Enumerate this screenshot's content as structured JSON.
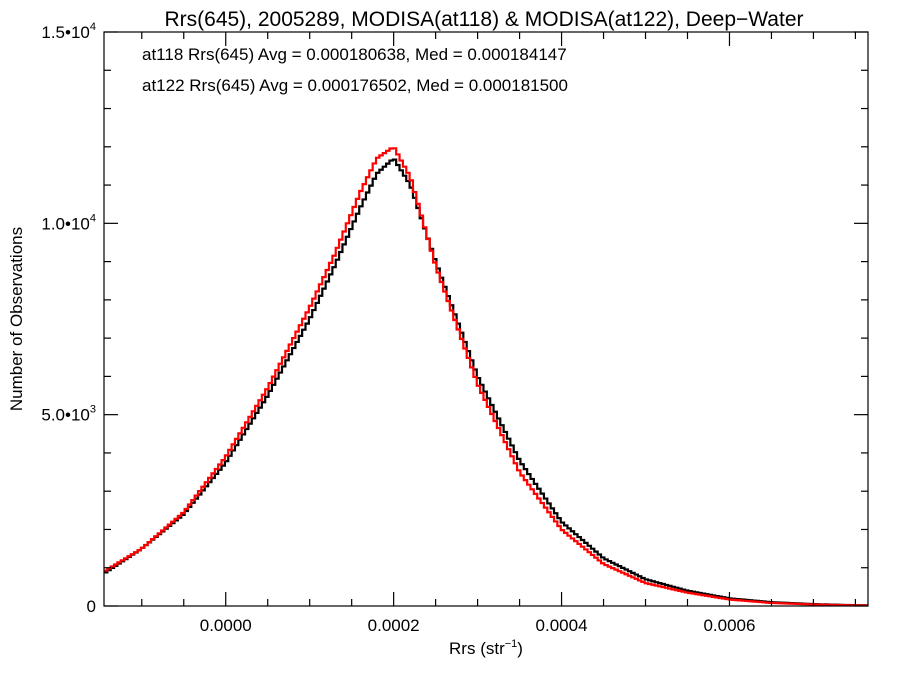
{
  "chart_data": {
    "type": "histogram-step",
    "title": "Rrs(645), 2005289, MODISA(at118) & MODISA(at122), Deep−Water",
    "xlabel": "Rrs (str",
    "xlabel_sup": "−1",
    "xlabel_end": ")",
    "ylabel": "Number of Observations",
    "xlim": [
      -0.000145,
      0.000765
    ],
    "ylim": [
      0,
      15000
    ],
    "x_ticks": [
      {
        "value": 0.0,
        "label": "0.0000"
      },
      {
        "value": 0.0002,
        "label": "0.0002"
      },
      {
        "value": 0.0004,
        "label": "0.0004"
      },
      {
        "value": 0.0006,
        "label": "0.0006"
      }
    ],
    "y_ticks": [
      {
        "value": 0,
        "mant": "0",
        "exp": ""
      },
      {
        "value": 5000,
        "mant": "5.0•10",
        "exp": "3"
      },
      {
        "value": 10000,
        "mant": "1.0•10",
        "exp": "4"
      },
      {
        "value": 15000,
        "mant": "1.5•10",
        "exp": "4"
      }
    ],
    "grid": false,
    "legend_position": "top-left",
    "series": [
      {
        "name": "at118",
        "label": "at118 Rrs(645) Avg = 0.000180638, Med = 0.000184147",
        "color": "#000000",
        "x": [
          -0.000145,
          -0.0001,
          -5e-05,
          0.0,
          5e-05,
          0.0001,
          0.00013,
          0.00016,
          0.00018,
          0.0002,
          0.00022,
          0.00025,
          0.0003,
          0.00035,
          0.0004,
          0.00045,
          0.0005,
          0.00055,
          0.0006,
          0.00065,
          0.0007,
          0.00075
        ],
        "values": [
          850,
          1500,
          2400,
          3750,
          5500,
          7500,
          8900,
          10400,
          11300,
          11700,
          11000,
          9000,
          6000,
          3800,
          2200,
          1250,
          700,
          400,
          200,
          100,
          50,
          20
        ]
      },
      {
        "name": "at122",
        "label": "at122 Rrs(645) Avg = 0.000176502, Med = 0.000181500",
        "color": "#ff0000",
        "x": [
          -0.000145,
          -0.0001,
          -5e-05,
          0.0,
          5e-05,
          0.0001,
          0.00013,
          0.00016,
          0.00018,
          0.0002,
          0.00022,
          0.00025,
          0.0003,
          0.00035,
          0.0004,
          0.00045,
          0.0005,
          0.00055,
          0.0006,
          0.00065,
          0.0007,
          0.00075
        ],
        "values": [
          900,
          1500,
          2450,
          3900,
          5700,
          7800,
          9200,
          10800,
          11700,
          12000,
          11200,
          8900,
          5800,
          3500,
          2000,
          1100,
          600,
          350,
          170,
          80,
          40,
          15
        ]
      }
    ]
  }
}
